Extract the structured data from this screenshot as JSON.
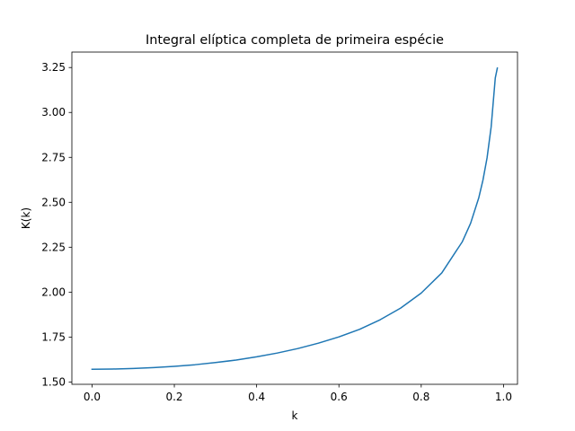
{
  "chart_data": {
    "type": "line",
    "title": "Integral elíptica completa de primeira espécie",
    "xlabel": "k",
    "ylabel": "K(k)",
    "xlim": [
      -0.049,
      1.034
    ],
    "ylim": [
      1.487,
      3.336
    ],
    "grid": false,
    "xticks": [
      0.0,
      0.2,
      0.4,
      0.6,
      0.8,
      1.0
    ],
    "xtick_labels": [
      "0.0",
      "0.2",
      "0.4",
      "0.6",
      "0.8",
      "1.0"
    ],
    "yticks": [
      1.5,
      1.75,
      2.0,
      2.25,
      2.5,
      2.75,
      3.0,
      3.25
    ],
    "ytick_labels": [
      "1.50",
      "1.75",
      "2.00",
      "2.25",
      "2.50",
      "2.75",
      "3.00",
      "3.25"
    ],
    "series": [
      {
        "color": "#1f77b4",
        "x": [
          0.0,
          0.05,
          0.1,
          0.15,
          0.2,
          0.25,
          0.3,
          0.35,
          0.4,
          0.45,
          0.5,
          0.55,
          0.6,
          0.65,
          0.7,
          0.75,
          0.8,
          0.85,
          0.9,
          0.92,
          0.94,
          0.95,
          0.96,
          0.97,
          0.98,
          0.985
        ],
        "y": [
          1.571,
          1.572,
          1.575,
          1.58,
          1.587,
          1.596,
          1.608,
          1.622,
          1.64,
          1.661,
          1.686,
          1.716,
          1.751,
          1.793,
          1.846,
          1.911,
          1.995,
          2.107,
          2.281,
          2.383,
          2.526,
          2.623,
          2.747,
          2.92,
          3.192,
          3.247
        ]
      }
    ]
  }
}
